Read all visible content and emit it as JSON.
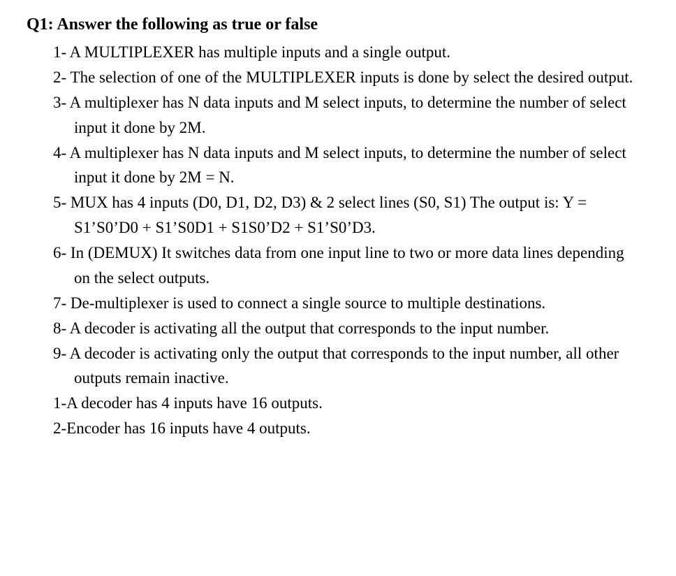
{
  "title": "Q1: Answer the following as true or false",
  "items": [
    {
      "n": "1-",
      "t": "A MULTIPLEXER has multiple inputs and a single output."
    },
    {
      "n": "2-",
      "t": "The selection of one of the MULTIPLEXER inputs is done by select the desired output."
    },
    {
      "n": "3-",
      "t": "A multiplexer has N data inputs and M select inputs, to determine the number of select input it done by 2M."
    },
    {
      "n": "4-",
      "t": "A multiplexer has N data inputs and M select inputs, to determine the number of select input it done by 2M = N."
    },
    {
      "n": "5-",
      "t": "MUX has 4 inputs (D0, D1, D2, D3) & 2 select lines (S0, S1) The output is: Y = S1’S0’D0 + S1’S0D1 + S1S0’D2 + S1’S0’D3."
    },
    {
      "n": "6-",
      "t": "In (DEMUX) It switches data from one input line to two or more data lines depending on the select outputs."
    },
    {
      "n": "7-",
      "t": "De-multiplexer is used to connect a single source to multiple destinations."
    },
    {
      "n": "8-",
      "t": "A decoder is activating all the output that corresponds to the input number."
    },
    {
      "n": "9-",
      "t": "A decoder is activating only the output that corresponds to the input number, all other outputs remain inactive."
    }
  ],
  "extras": [
    "1-A decoder has 4 inputs have 16 outputs.",
    "2-Encoder has 16 inputs have 4 outputs."
  ],
  "style": {
    "font_family": "Times New Roman",
    "title_fontsize": 24,
    "body_fontsize": 23,
    "text_color": "#000000",
    "background_color": "#ffffff",
    "line_height": 1.56
  }
}
